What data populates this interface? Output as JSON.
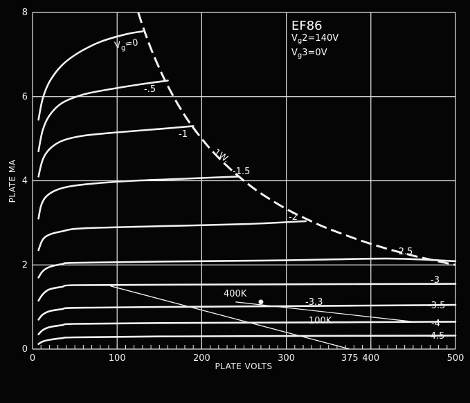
{
  "chart_data": {
    "type": "line",
    "title": "EF86",
    "subtitle_lines": [
      "Vg2=140V",
      "Vg3=0V"
    ],
    "xlabel": "PLATE VOLTS",
    "ylabel": "PLATE MA",
    "xlim": [
      0,
      500
    ],
    "ylim": [
      0,
      8
    ],
    "x_ticks": [
      0,
      100,
      200,
      300,
      400,
      500
    ],
    "y_ticks": [
      0,
      2,
      4,
      6,
      8
    ],
    "x_tick_extra": {
      "value": 375,
      "label": "375"
    },
    "grid": true,
    "colors": {
      "background": "#050505",
      "lines": "#f2f2f2",
      "grid": "#e6e6e6"
    },
    "series": [
      {
        "name": "Vg=0",
        "label": "Vg=0",
        "x": [
          7,
          12,
          20,
          35,
          55,
          80,
          110,
          130
        ],
        "y": [
          5.45,
          5.95,
          6.35,
          6.75,
          7.05,
          7.3,
          7.48,
          7.55
        ]
      },
      {
        "name": "-.5",
        "label": "-.5",
        "x": [
          7,
          12,
          20,
          35,
          60,
          90,
          130,
          160
        ],
        "y": [
          4.7,
          5.2,
          5.55,
          5.85,
          6.05,
          6.17,
          6.3,
          6.38
        ]
      },
      {
        "name": "-1",
        "label": "-1",
        "x": [
          7,
          12,
          20,
          35,
          60,
          100,
          150,
          190
        ],
        "y": [
          4.1,
          4.5,
          4.75,
          4.95,
          5.07,
          5.15,
          5.23,
          5.3
        ]
      },
      {
        "name": "-1.5",
        "label": "-1.5",
        "x": [
          7,
          10,
          15,
          25,
          40,
          70,
          120,
          180,
          243
        ],
        "y": [
          3.1,
          3.4,
          3.6,
          3.75,
          3.85,
          3.93,
          4.0,
          4.05,
          4.1
        ]
      },
      {
        "name": "-2",
        "label": "-2",
        "x": [
          7,
          12,
          20,
          35,
          60,
          150,
          250,
          323
        ],
        "y": [
          2.35,
          2.6,
          2.72,
          2.8,
          2.87,
          2.92,
          2.97,
          3.04
        ]
      },
      {
        "name": "-2.5",
        "label": "-2.5",
        "x": [
          7,
          12,
          20,
          35,
          50,
          150,
          300,
          420,
          500
        ],
        "y": [
          1.7,
          1.85,
          1.95,
          2.02,
          2.05,
          2.08,
          2.11,
          2.15,
          2.09
        ]
      },
      {
        "name": "-3",
        "label": "-3",
        "x": [
          7,
          12,
          20,
          35,
          50,
          150,
          300,
          500
        ],
        "y": [
          1.15,
          1.3,
          1.42,
          1.48,
          1.52,
          1.53,
          1.54,
          1.55
        ]
      },
      {
        "name": "-3.5",
        "label": "-3.5",
        "x": [
          7,
          12,
          20,
          35,
          50,
          150,
          300,
          500
        ],
        "y": [
          0.7,
          0.82,
          0.9,
          0.95,
          0.98,
          1.0,
          1.02,
          1.05
        ]
      },
      {
        "name": "-4",
        "label": "-4",
        "x": [
          7,
          12,
          20,
          35,
          50,
          150,
          300,
          500
        ],
        "y": [
          0.35,
          0.45,
          0.52,
          0.57,
          0.6,
          0.62,
          0.63,
          0.65
        ]
      },
      {
        "name": "-4.5",
        "label": "-4.5",
        "x": [
          7,
          12,
          20,
          35,
          50,
          150,
          300,
          500
        ],
        "y": [
          0.12,
          0.18,
          0.22,
          0.26,
          0.28,
          0.3,
          0.31,
          0.32
        ]
      }
    ],
    "dissipation_curve": {
      "name": "1W.",
      "label": "1W.",
      "x": [
        125,
        130,
        140,
        150,
        160,
        175,
        190,
        210,
        230,
        250,
        270,
        300,
        323,
        350,
        400,
        450,
        500
      ],
      "y": [
        8.0,
        7.69,
        7.14,
        6.67,
        6.25,
        5.71,
        5.26,
        4.76,
        4.35,
        4.0,
        3.7,
        3.33,
        3.1,
        2.86,
        2.5,
        2.22,
        2.0
      ]
    },
    "load_lines": [
      {
        "name": "100K",
        "label": "100K",
        "x": [
          92,
          375
        ],
        "y": [
          1.5,
          0.0
        ]
      },
      {
        "name": "400K",
        "label": "400K",
        "x": [
          240,
          450
        ],
        "y": [
          1.12,
          0.65
        ]
      }
    ],
    "operating_point": {
      "label": "-3.3",
      "x": 270,
      "y": 1.12
    },
    "annotations": {
      "vg_prefix": "V",
      "vg_sub": "g",
      "vg_rest": "=0",
      "vg2_prefix": "V",
      "vg2_sub": "g",
      "vg2_rest": "2=140V",
      "vg3_prefix": "V",
      "vg3_sub": "g",
      "vg3_rest": "3=0V"
    }
  }
}
